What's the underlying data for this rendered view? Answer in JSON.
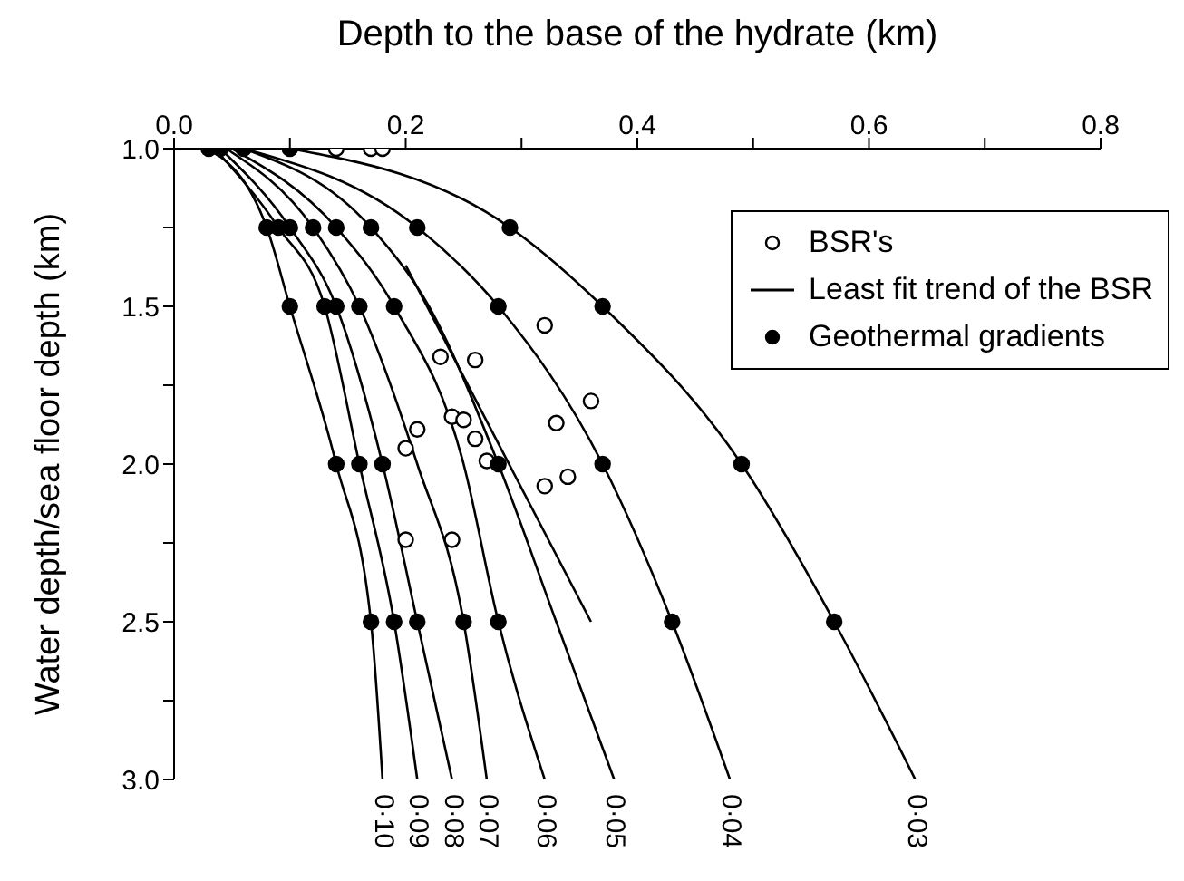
{
  "chart_data": {
    "type": "scatter",
    "xlabel": "Depth to the base of the hydrate (km)",
    "ylabel": "Water depth/sea floor depth (km)",
    "xlim": [
      0,
      0.8
    ],
    "xticks": [
      {
        "value": 0,
        "label": "0.0"
      },
      {
        "value": 0.1,
        "label": null
      },
      {
        "value": 0.2,
        "label": "0.2"
      },
      {
        "value": 0.3,
        "label": null
      },
      {
        "value": 0.4,
        "label": "0.4"
      },
      {
        "value": 0.5,
        "label": null
      },
      {
        "value": 0.6,
        "label": "0.6"
      },
      {
        "value": 0.7,
        "label": null
      },
      {
        "value": 0.8,
        "label": "0.8"
      }
    ],
    "ylim": [
      3.0,
      1.0
    ],
    "yticks": [
      {
        "value": 1,
        "label": "1.0"
      },
      {
        "value": 1.25,
        "label": null
      },
      {
        "value": 1.5,
        "label": "1.5"
      },
      {
        "value": 1.75,
        "label": null
      },
      {
        "value": 2,
        "label": "2.0"
      },
      {
        "value": 2.25,
        "label": null
      },
      {
        "value": 2.5,
        "label": "2.5"
      },
      {
        "value": 2.75,
        "label": null
      },
      {
        "value": 3,
        "label": "3.0"
      }
    ],
    "grid": false,
    "legend": "top right",
    "series": [
      {
        "name": "BSR's",
        "color": "#ffffff",
        "marker": "circle",
        "x": [
          0.14,
          0.17,
          0.18,
          0.32,
          0.23,
          0.26,
          0.36,
          0.33,
          0.24,
          0.25,
          0.21,
          0.26,
          0.2,
          0.27,
          0.32,
          0.34,
          0.2,
          0.24
        ],
        "values": [
          1.0,
          1.0,
          1.0,
          1.56,
          1.66,
          1.67,
          1.8,
          1.87,
          1.85,
          1.86,
          1.89,
          1.92,
          1.95,
          1.99,
          2.07,
          2.04,
          2.24,
          2.24
        ]
      },
      {
        "name": "Least fit trend of the BSR",
        "type": "line",
        "color": "#000000",
        "x": [
          0.2,
          0.36
        ],
        "values": [
          1.37,
          2.5
        ]
      },
      {
        "name": "Geothermal gradients",
        "color": "#000000",
        "marker": "circle",
        "x": [
          0.03,
          0.04,
          0.06,
          0.1,
          0.08,
          0.09,
          0.1,
          0.12,
          0.14,
          0.17,
          0.21,
          0.29,
          0.1,
          0.13,
          0.14,
          0.16,
          0.19,
          0.28,
          0.37,
          0.14,
          0.16,
          0.18,
          0.28,
          0.37,
          0.49,
          0.17,
          0.19,
          0.21,
          0.25,
          0.28,
          0.43,
          0.57
        ],
        "values": [
          1,
          1,
          1,
          1,
          1.25,
          1.25,
          1.25,
          1.25,
          1.25,
          1.25,
          1.25,
          1.25,
          1.5,
          1.5,
          1.5,
          1.5,
          1.5,
          1.5,
          1.5,
          2,
          2,
          2,
          2,
          2,
          2,
          2.5,
          2.5,
          2.5,
          2.5,
          2.5,
          2.5,
          2.5
        ]
      },
      {
        "type": "line",
        "color": "#000000",
        "x": [
          0.03,
          0.08,
          0.1,
          0.14,
          0.17,
          0.18
        ],
        "values": [
          1,
          1.25,
          1.5,
          2,
          2.5,
          3
        ]
      },
      {
        "type": "line",
        "color": "#000000",
        "x": [
          0.035,
          0.09,
          0.13,
          0.16,
          0.19,
          0.21
        ],
        "values": [
          1,
          1.25,
          1.5,
          2,
          2.5,
          3
        ]
      },
      {
        "type": "line",
        "color": "#000000",
        "x": [
          0.04,
          0.1,
          0.14,
          0.18,
          0.21,
          0.24
        ],
        "values": [
          1,
          1.25,
          1.5,
          2,
          2.5,
          3
        ]
      },
      {
        "type": "line",
        "color": "#000000",
        "x": [
          0.045,
          0.12,
          0.16,
          0.21,
          0.25,
          0.27
        ],
        "values": [
          1,
          1.25,
          1.5,
          2,
          2.5,
          3
        ]
      },
      {
        "type": "line",
        "color": "#000000",
        "x": [
          0.05,
          0.14,
          0.19,
          0.25,
          0.28,
          0.32
        ],
        "values": [
          1,
          1.25,
          1.5,
          2,
          2.5,
          3
        ]
      },
      {
        "type": "line",
        "color": "#000000",
        "x": [
          0.06,
          0.17,
          0.22,
          0.28,
          0.33,
          0.38
        ],
        "values": [
          1,
          1.25,
          1.5,
          2,
          2.5,
          3
        ]
      },
      {
        "type": "line",
        "color": "#000000",
        "x": [
          0.06,
          0.21,
          0.28,
          0.37,
          0.43,
          0.48
        ],
        "values": [
          1,
          1.25,
          1.5,
          2,
          2.5,
          3
        ]
      },
      {
        "type": "line",
        "color": "#000000",
        "x": [
          0.1,
          0.29,
          0.37,
          0.49,
          0.57,
          0.64
        ],
        "values": [
          1,
          1.25,
          1.5,
          2,
          2.5,
          3
        ]
      }
    ],
    "annotations": [
      {
        "text": "0·10",
        "x": 0.18,
        "y": 3
      },
      {
        "text": "0·09",
        "x": 0.21,
        "y": 3
      },
      {
        "text": "0·08",
        "x": 0.24,
        "y": 3
      },
      {
        "text": "0·07",
        "x": 0.27,
        "y": 3
      },
      {
        "text": "0·06",
        "x": 0.32,
        "y": 3
      },
      {
        "text": "0·05",
        "x": 0.38,
        "y": 3
      },
      {
        "text": "0·04",
        "x": 0.48,
        "y": 3
      },
      {
        "text": "0·03",
        "x": 0.64,
        "y": 3
      }
    ]
  }
}
